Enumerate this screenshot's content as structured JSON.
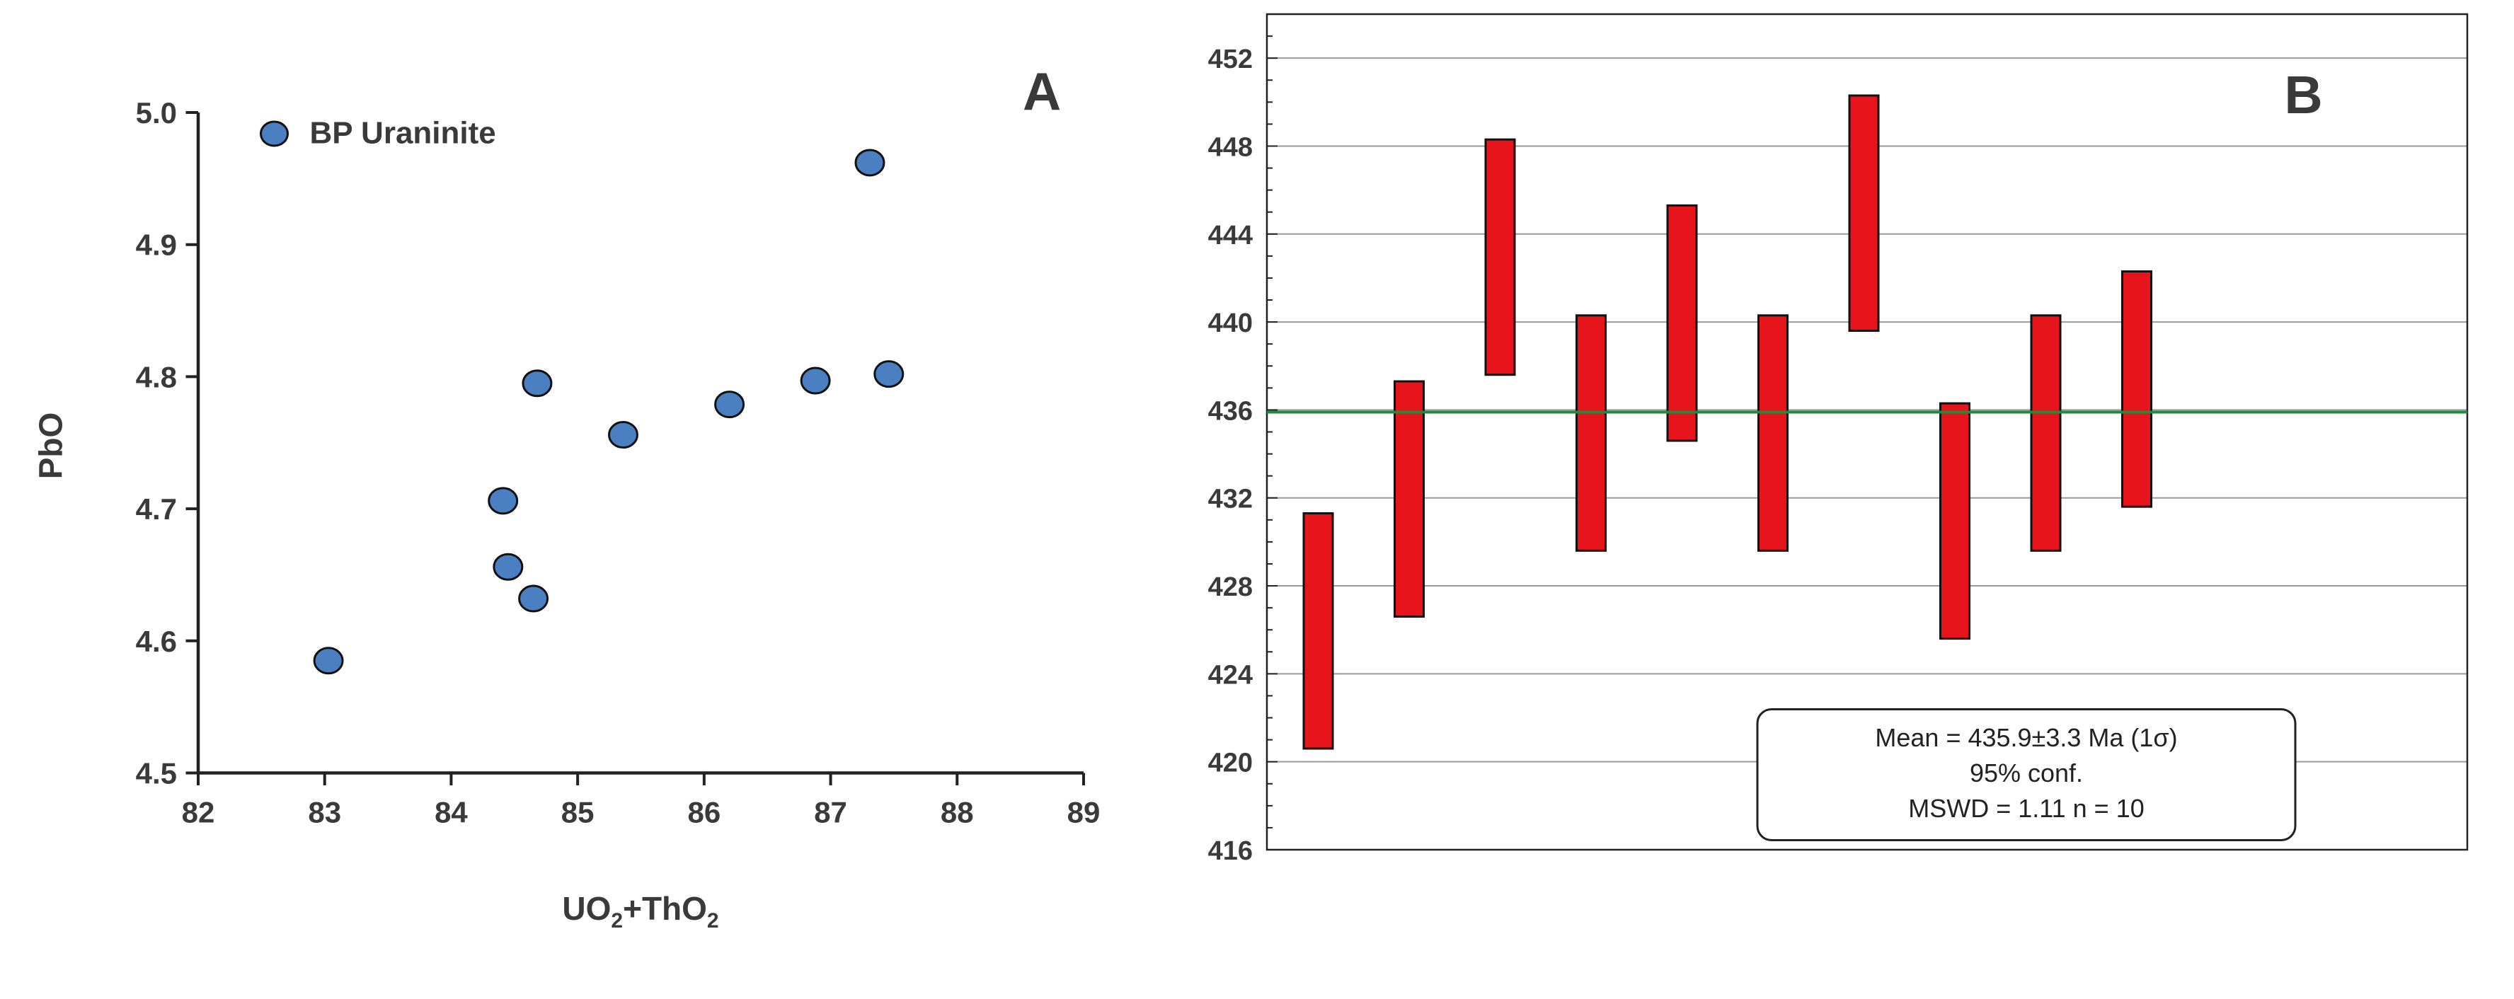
{
  "chart_data": [
    {
      "panel_label": "A",
      "type": "scatter",
      "xlabel_main": "UO",
      "xlabel_sub1": "2",
      "xlabel_mid": "+ThO",
      "xlabel_sub2": "2",
      "ylabel": "PbO",
      "xlim": [
        82,
        89
      ],
      "ylim": [
        4.5,
        5.0
      ],
      "x_ticks": [
        "82",
        "83",
        "84",
        "85",
        "86",
        "87",
        "88",
        "89"
      ],
      "y_ticks": [
        "4.5",
        "4.6",
        "4.7",
        "4.8",
        "4.9",
        "5.0"
      ],
      "legend": {
        "label": "BP Uraninite",
        "placement": "top-left"
      },
      "marker_color": "#4a7fc1",
      "series": [
        {
          "name": "BP Uraninite",
          "points": [
            {
              "x": 83.03,
              "y": 4.585
            },
            {
              "x": 84.41,
              "y": 4.706
            },
            {
              "x": 84.45,
              "y": 4.656
            },
            {
              "x": 84.65,
              "y": 4.632
            },
            {
              "x": 84.68,
              "y": 4.795
            },
            {
              "x": 85.36,
              "y": 4.756
            },
            {
              "x": 86.2,
              "y": 4.779
            },
            {
              "x": 86.88,
              "y": 4.797
            },
            {
              "x": 87.31,
              "y": 4.962
            },
            {
              "x": 87.46,
              "y": 4.802
            }
          ]
        }
      ]
    },
    {
      "panel_label": "B",
      "type": "bar",
      "subtype": "error-bar boxes (weighted mean)",
      "ylim": [
        416,
        454
      ],
      "y_ticks": [
        "416",
        "420",
        "424",
        "428",
        "432",
        "436",
        "440",
        "444",
        "448",
        "452"
      ],
      "grid": true,
      "box_color": "#e8141b",
      "mean_line": {
        "value": 435.9,
        "color": "#1e8c3c"
      },
      "boxes": [
        {
          "low": 420.6,
          "high": 431.3
        },
        {
          "low": 426.6,
          "high": 437.3
        },
        {
          "low": 437.6,
          "high": 448.3
        },
        {
          "low": 429.6,
          "high": 440.3
        },
        {
          "low": 434.6,
          "high": 445.3
        },
        {
          "low": 429.6,
          "high": 440.3
        },
        {
          "low": 439.6,
          "high": 450.3
        },
        {
          "low": 425.6,
          "high": 436.3
        },
        {
          "low": 429.6,
          "high": 440.3
        },
        {
          "low": 431.6,
          "high": 442.3
        }
      ],
      "annotation": {
        "line1": "Mean = 435.9±3.3 Ma (1σ)",
        "line2": "95% conf.",
        "line3": "MSWD = 1.11  n = 10"
      }
    }
  ]
}
